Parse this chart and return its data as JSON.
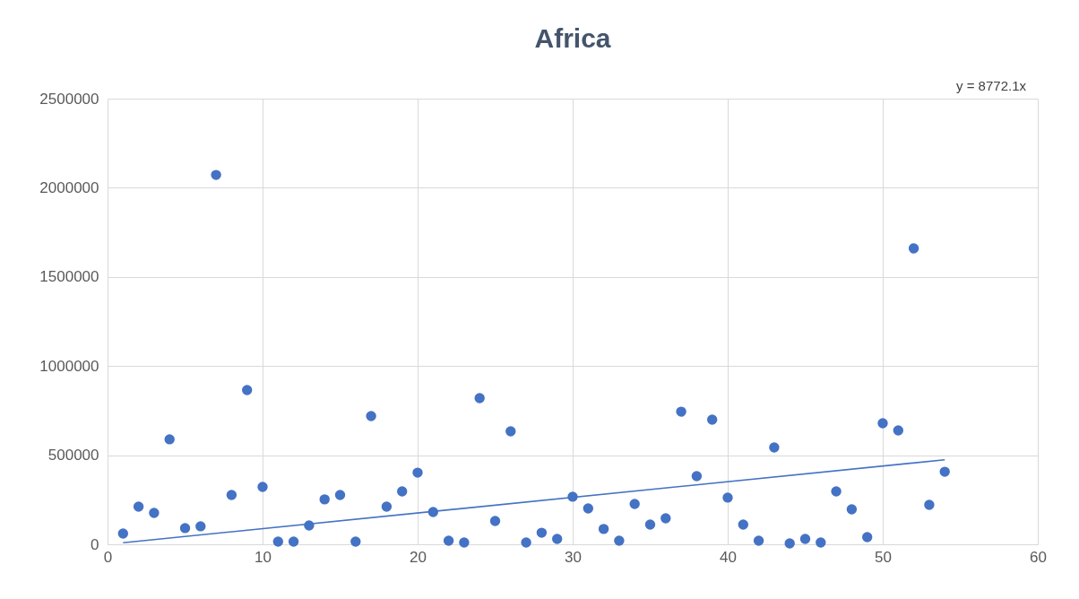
{
  "chart_data": {
    "type": "scatter",
    "title": "Africa",
    "annotations": [
      "y = 8772.1x"
    ],
    "x": [
      1,
      2,
      3,
      4,
      5,
      6,
      7,
      8,
      9,
      10,
      11,
      12,
      13,
      14,
      15,
      16,
      17,
      18,
      19,
      20,
      21,
      22,
      23,
      24,
      25,
      26,
      27,
      28,
      29,
      30,
      31,
      32,
      33,
      34,
      35,
      36,
      37,
      38,
      39,
      40,
      41,
      42,
      43,
      44,
      45,
      46,
      47,
      48,
      49,
      50,
      51,
      52,
      53,
      54
    ],
    "series": [
      {
        "color": "#4472c4",
        "values": [
          60000,
          211000,
          176000,
          589000,
          91000,
          101000,
          2072000,
          277000,
          865000,
          322000,
          15000,
          15000,
          106000,
          252000,
          277000,
          15000,
          719000,
          211000,
          297000,
          402000,
          181000,
          20000,
          10000,
          820000,
          131000,
          634000,
          10000,
          65000,
          30000,
          267000,
          201000,
          86000,
          20000,
          226000,
          111000,
          146000,
          744000,
          382000,
          699000,
          262000,
          111000,
          20000,
          543000,
          5000,
          30000,
          10000,
          297000,
          196000,
          40000,
          679000,
          639000,
          1660000,
          221000,
          407000
        ]
      },
      {
        "type": "line",
        "marker": "none",
        "color": "#4472c4",
        "x": [
          1,
          54
        ],
        "values": [
          8800,
          474000
        ]
      }
    ],
    "xlim": [
      0,
      60
    ],
    "xticks": [
      0,
      10,
      20,
      30,
      40,
      50,
      60
    ],
    "ylim": [
      0,
      2500000
    ],
    "yticks": [
      0,
      500000,
      1000000,
      1500000,
      2000000,
      2500000
    ],
    "grid": true,
    "marker": "circle"
  }
}
